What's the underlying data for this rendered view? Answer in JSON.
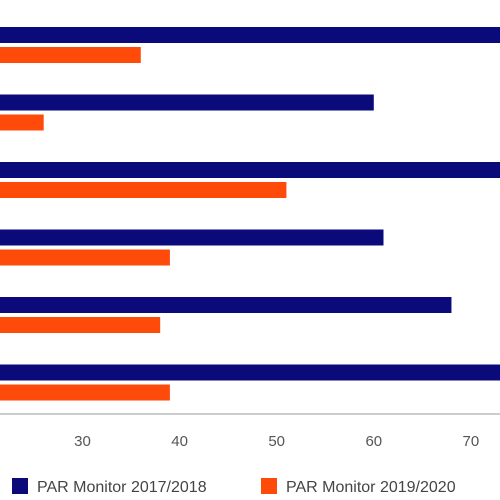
{
  "chart_data": {
    "type": "bar",
    "orientation": "horizontal",
    "categories": [
      "",
      "",
      "",
      "",
      "",
      ""
    ],
    "series": [
      {
        "name": "PAR Monitor 2017/2018",
        "color": "#0a0a7a",
        "values": [
          75,
          60,
          75,
          61,
          68,
          75
        ]
      },
      {
        "name": "PAR Monitor 2019/2020",
        "color": "#ff4b0a",
        "values": [
          36,
          26,
          51,
          39,
          38,
          39
        ]
      }
    ],
    "x_ticks": [
      30,
      40,
      50,
      60,
      70
    ],
    "xlim": [
      21.5,
      73
    ],
    "grid": false,
    "legend_position": "bottom",
    "title": "",
    "xlabel": "",
    "ylabel": ""
  }
}
